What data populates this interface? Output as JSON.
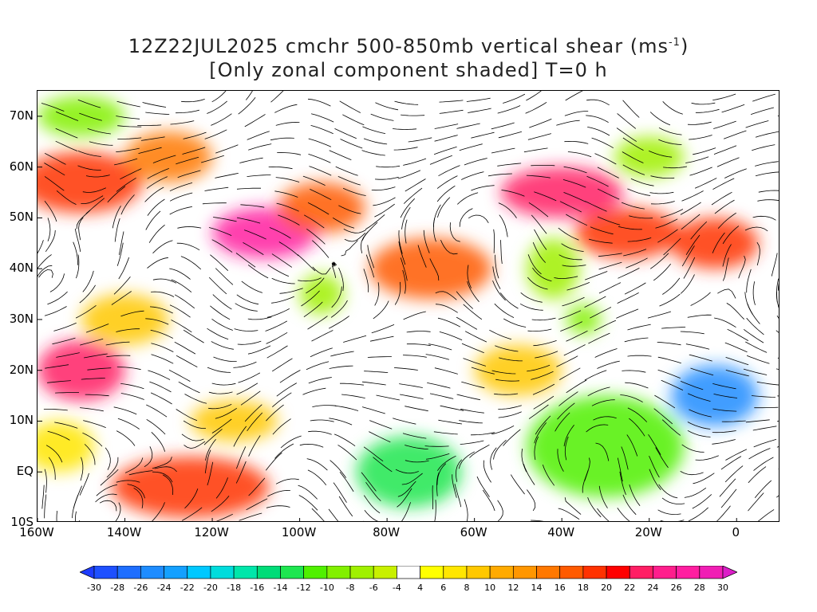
{
  "title": {
    "line1_prefix": "12Z22JUL2025 cmchr 500-850mb vertical shear (ms",
    "line1_sup": "-1",
    "line1_suffix": ")",
    "line2": "[Only zonal component shaded] T=0 h"
  },
  "map": {
    "lon_range": [
      -160,
      10
    ],
    "lat_range": [
      -10,
      75
    ],
    "lat_labels": [
      {
        "text": "70N",
        "lat": 70
      },
      {
        "text": "60N",
        "lat": 60
      },
      {
        "text": "50N",
        "lat": 50
      },
      {
        "text": "40N",
        "lat": 40
      },
      {
        "text": "30N",
        "lat": 30
      },
      {
        "text": "20N",
        "lat": 20
      },
      {
        "text": "10N",
        "lat": 10
      },
      {
        "text": "EQ",
        "lat": 0
      },
      {
        "text": "10S",
        "lat": -10
      }
    ],
    "lon_labels": [
      {
        "text": "160W",
        "lon": -160
      },
      {
        "text": "140W",
        "lon": -140
      },
      {
        "text": "120W",
        "lon": -120
      },
      {
        "text": "100W",
        "lon": -100
      },
      {
        "text": "80W",
        "lon": -80
      },
      {
        "text": "60W",
        "lon": -60
      },
      {
        "text": "40W",
        "lon": -40
      },
      {
        "text": "20W",
        "lon": -20
      },
      {
        "text": "0",
        "lon": 0
      }
    ],
    "shear_features": [
      {
        "lon": -150,
        "lat": 57,
        "val": 18,
        "rx": 14,
        "ry": 6
      },
      {
        "lon": -130,
        "lat": 62,
        "val": 14,
        "rx": 10,
        "ry": 5
      },
      {
        "lon": -108,
        "lat": 47,
        "val": 26,
        "rx": 12,
        "ry": 5
      },
      {
        "lon": -95,
        "lat": 52,
        "val": 16,
        "rx": 10,
        "ry": 5
      },
      {
        "lon": -70,
        "lat": 40,
        "val": 16,
        "rx": 14,
        "ry": 6
      },
      {
        "lon": -40,
        "lat": 55,
        "val": 22,
        "rx": 14,
        "ry": 5
      },
      {
        "lon": -25,
        "lat": 47,
        "val": 18,
        "rx": 12,
        "ry": 5
      },
      {
        "lon": -5,
        "lat": 45,
        "val": 18,
        "rx": 10,
        "ry": 5
      },
      {
        "lon": -150,
        "lat": 20,
        "val": 22,
        "rx": 10,
        "ry": 6
      },
      {
        "lon": -125,
        "lat": -3,
        "val": 18,
        "rx": 18,
        "ry": 6
      },
      {
        "lon": -140,
        "lat": 30,
        "val": 8,
        "rx": 10,
        "ry": 5
      },
      {
        "lon": -75,
        "lat": 0,
        "val": -14,
        "rx": 12,
        "ry": 7
      },
      {
        "lon": -30,
        "lat": 5,
        "val": -12,
        "rx": 18,
        "ry": 10
      },
      {
        "lon": -5,
        "lat": 15,
        "val": -26,
        "rx": 10,
        "ry": 6
      },
      {
        "lon": -42,
        "lat": 40,
        "val": -8,
        "rx": 6,
        "ry": 6
      },
      {
        "lon": -35,
        "lat": 30,
        "val": -10,
        "rx": 4,
        "ry": 3
      },
      {
        "lon": -95,
        "lat": 35,
        "val": -8,
        "rx": 5,
        "ry": 4
      },
      {
        "lon": -150,
        "lat": 70,
        "val": -10,
        "rx": 10,
        "ry": 4
      },
      {
        "lon": -20,
        "lat": 62,
        "val": -8,
        "rx": 8,
        "ry": 4
      },
      {
        "lon": -50,
        "lat": 20,
        "val": 8,
        "rx": 10,
        "ry": 5
      },
      {
        "lon": -155,
        "lat": 5,
        "val": 6,
        "rx": 8,
        "ry": 5
      },
      {
        "lon": -115,
        "lat": 10,
        "val": 8,
        "rx": 10,
        "ry": 4
      }
    ]
  },
  "colorbar": {
    "levels": [
      -30,
      -28,
      -26,
      -24,
      -22,
      -20,
      -18,
      -16,
      -14,
      -12,
      -10,
      -8,
      -6,
      -4,
      4,
      6,
      8,
      10,
      12,
      14,
      16,
      18,
      20,
      22,
      24,
      26,
      28,
      30
    ],
    "colors": [
      "#1e3cff",
      "#1e50ff",
      "#1e6eff",
      "#1e8cff",
      "#14a0ff",
      "#00c8ff",
      "#00dcdc",
      "#00e6aa",
      "#00dc78",
      "#1ee650",
      "#50f000",
      "#82f000",
      "#a0f000",
      "#c8f000",
      "#ffffff",
      "#ffff00",
      "#ffe600",
      "#ffc800",
      "#ffaa00",
      "#ff9600",
      "#ff7800",
      "#ff5a00",
      "#ff3200",
      "#ff0000",
      "#ff1e64",
      "#ff1e8c",
      "#ff1ea0",
      "#f01eb4",
      "#dc1ec8"
    ]
  }
}
